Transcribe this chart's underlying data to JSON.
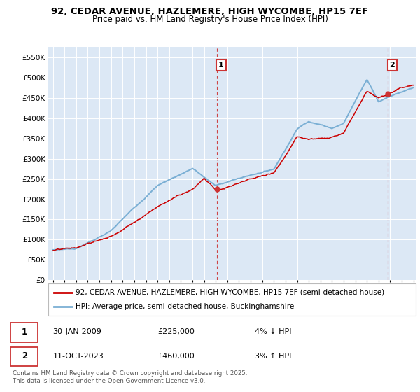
{
  "title1": "92, CEDAR AVENUE, HAZLEMERE, HIGH WYCOMBE, HP15 7EF",
  "title2": "Price paid vs. HM Land Registry's House Price Index (HPI)",
  "legend_line1": "92, CEDAR AVENUE, HAZLEMERE, HIGH WYCOMBE, HP15 7EF (semi-detached house)",
  "legend_line2": "HPI: Average price, semi-detached house, Buckinghamshire",
  "annotation1_label": "1",
  "annotation1_date": "30-JAN-2009",
  "annotation1_price": "£225,000",
  "annotation1_hpi": "4% ↓ HPI",
  "annotation2_label": "2",
  "annotation2_date": "11-OCT-2023",
  "annotation2_price": "£460,000",
  "annotation2_hpi": "3% ↑ HPI",
  "footer": "Contains HM Land Registry data © Crown copyright and database right 2025.\nThis data is licensed under the Open Government Licence v3.0.",
  "line_color_red": "#cc0000",
  "line_color_blue": "#7aafd4",
  "annotation_color": "#cc3333",
  "background_color": "#ffffff",
  "chart_bg": "#dce8f5",
  "grid_color": "#ffffff",
  "ylim": [
    0,
    575000
  ],
  "yticks": [
    0,
    50000,
    100000,
    150000,
    200000,
    250000,
    300000,
    350000,
    400000,
    450000,
    500000,
    550000
  ],
  "xlim_min": 1994.6,
  "xlim_max": 2026.2,
  "sale1_x": 2009.08,
  "sale1_y": 225000,
  "sale2_x": 2023.78,
  "sale2_y": 460000
}
